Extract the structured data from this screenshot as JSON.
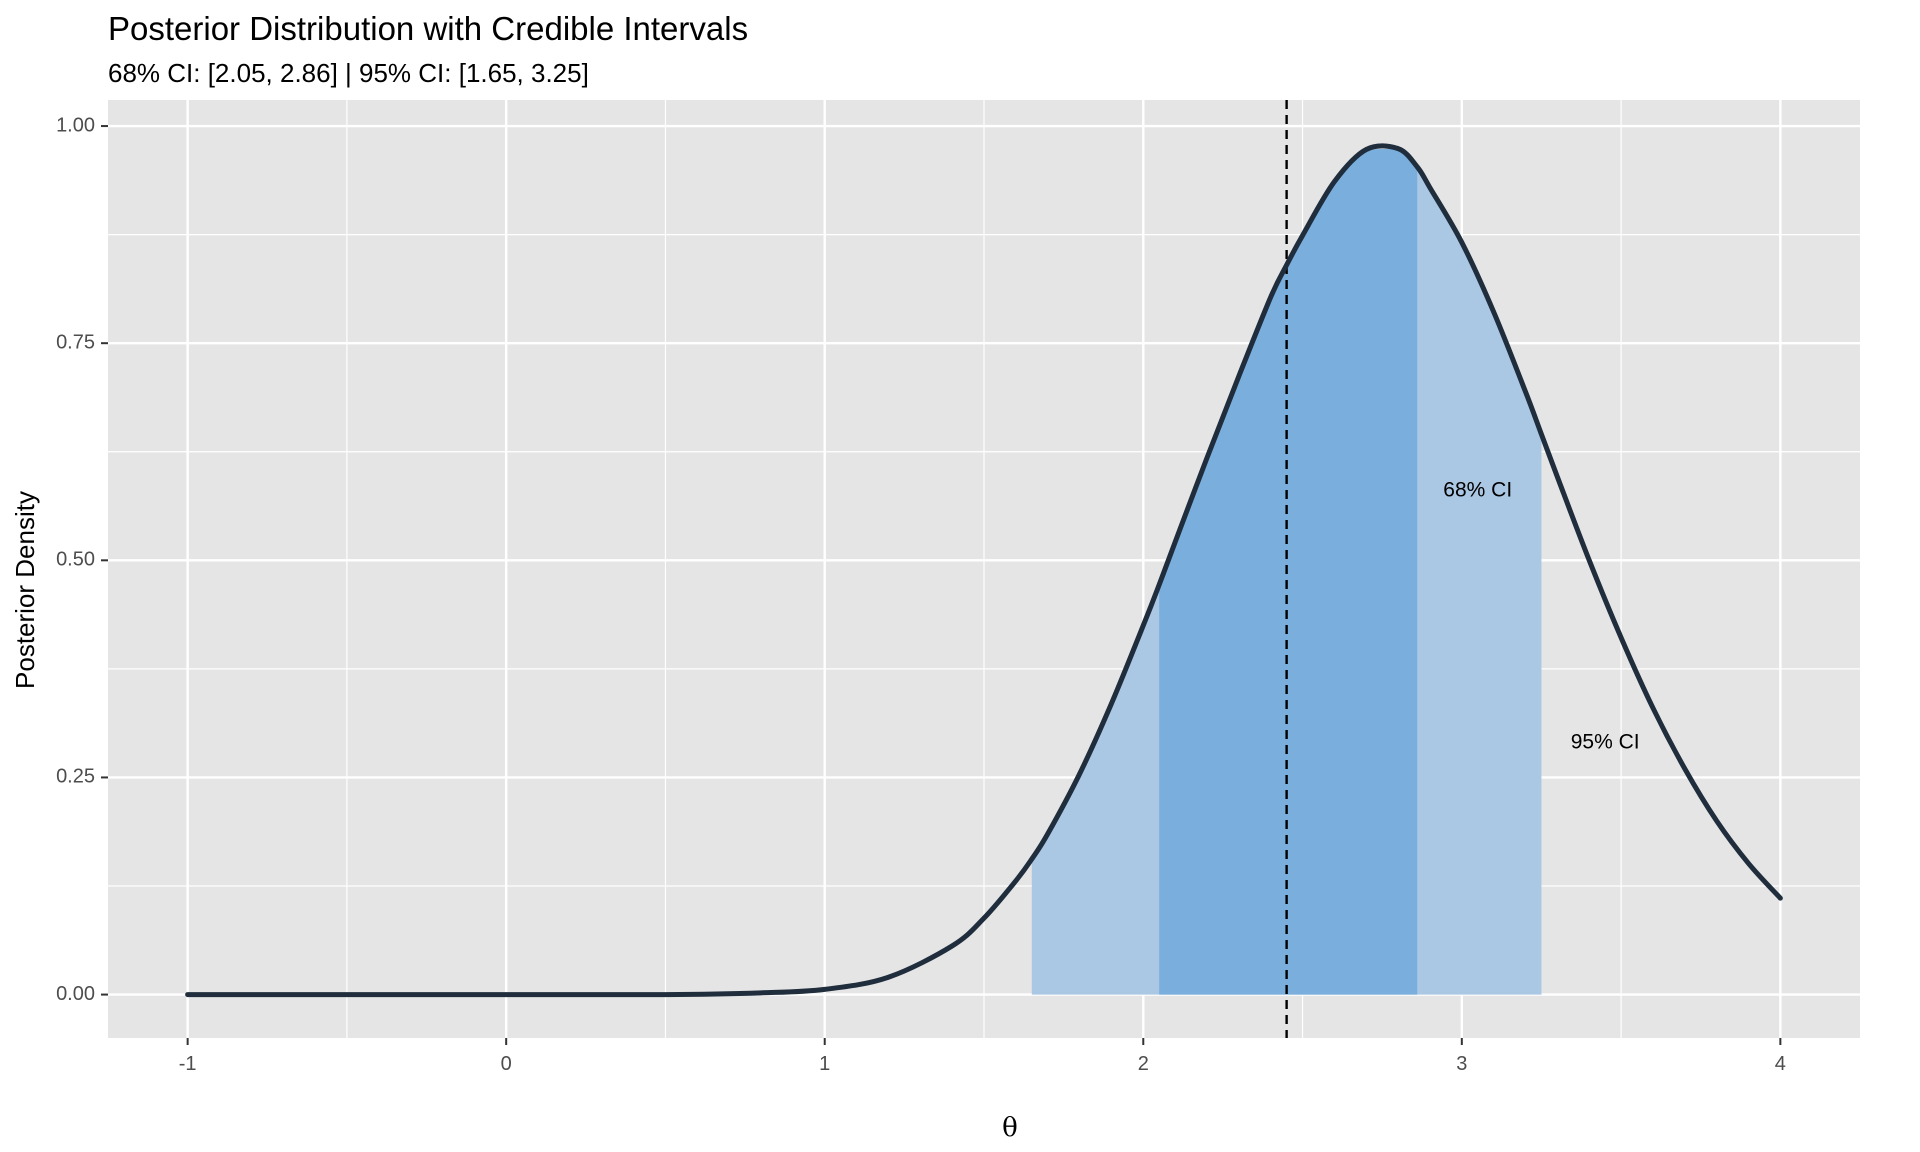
{
  "chart_data": {
    "type": "area",
    "title": "Posterior Distribution with Credible Intervals",
    "subtitle": "68% CI: [2.05, 2.86]  |  95% CI: [1.65, 3.25]",
    "xlabel": "θ",
    "ylabel": "Posterior Density",
    "xlim": [
      -1.25,
      4.25
    ],
    "ylim": [
      -0.05,
      1.03
    ],
    "x_ticks": [
      -1,
      0,
      1,
      2,
      3,
      4
    ],
    "x_tick_labels": [
      "-1",
      "0",
      "1",
      "2",
      "3",
      "4"
    ],
    "y_ticks": [
      0,
      0.25,
      0.5,
      0.75,
      1.0
    ],
    "y_tick_labels": [
      "0.00",
      "0.25",
      "0.50",
      "0.75",
      "1.00"
    ],
    "grid": true,
    "curve": {
      "x": [
        -1.0,
        -0.5,
        0.0,
        0.5,
        0.8,
        1.0,
        1.2,
        1.4,
        1.5,
        1.6,
        1.65,
        1.7,
        1.8,
        1.9,
        2.0,
        2.05,
        2.1,
        2.2,
        2.3,
        2.4,
        2.45,
        2.5,
        2.6,
        2.7,
        2.8,
        2.86,
        2.9,
        3.0,
        3.1,
        3.2,
        3.25,
        3.3,
        3.4,
        3.5,
        3.6,
        3.7,
        3.8,
        3.9,
        4.0
      ],
      "y": [
        0.0,
        0.0,
        0.0,
        0.0,
        0.002,
        0.006,
        0.02,
        0.056,
        0.088,
        0.131,
        0.156,
        0.185,
        0.254,
        0.335,
        0.425,
        0.472,
        0.521,
        0.618,
        0.712,
        0.803,
        0.84,
        0.874,
        0.936,
        0.973,
        0.974,
        0.953,
        0.929,
        0.866,
        0.786,
        0.694,
        0.645,
        0.596,
        0.5,
        0.411,
        0.33,
        0.26,
        0.2,
        0.151,
        0.111
      ],
      "color": "#1f2d3d"
    },
    "intervals": [
      {
        "label": "95% CI",
        "lower": 1.65,
        "upper": 3.25,
        "color": "#aac7e4"
      },
      {
        "label": "68% CI",
        "lower": 2.05,
        "upper": 2.86,
        "color": "#7aaedc"
      }
    ],
    "posterior_mean": 2.45,
    "annotations": [
      {
        "text": "68% CI",
        "x": 3.05,
        "y": 0.58
      },
      {
        "text": "95% CI",
        "x": 3.45,
        "y": 0.29
      }
    ],
    "colors": {
      "panel_background": "#e5e5e5",
      "grid_line": "#ffffff",
      "mean_line": "#000000"
    }
  }
}
